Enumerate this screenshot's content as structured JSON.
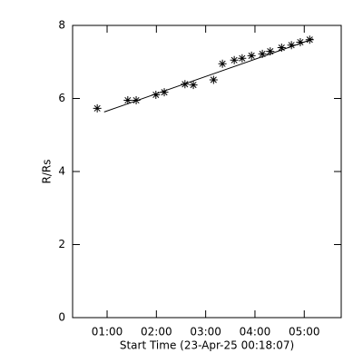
{
  "chart_data": {
    "type": "scatter",
    "x_label": "Start Time (23-Apr-25 00:18:07)",
    "y_label": "R/Rs",
    "x": [
      0.8,
      1.42,
      1.59,
      1.99,
      2.16,
      2.58,
      2.75,
      3.16,
      3.34,
      3.58,
      3.74,
      3.93,
      4.15,
      4.31,
      4.54,
      4.74,
      4.92,
      5.11
    ],
    "values": [
      5.73,
      5.95,
      5.95,
      6.1,
      6.17,
      6.39,
      6.37,
      6.51,
      6.95,
      7.05,
      7.1,
      7.17,
      7.22,
      7.29,
      7.39,
      7.46,
      7.54,
      7.61
    ],
    "marker": "asterisk",
    "color": "#000000",
    "fit": {
      "x": [
        0.94,
        5.18
      ],
      "values": [
        5.63,
        7.63
      ]
    },
    "xlim": [
      0.3,
      5.75
    ],
    "ylim": [
      0,
      8
    ],
    "xticks": [
      {
        "value": 1,
        "label": "01:00"
      },
      {
        "value": 2,
        "label": "02:00"
      },
      {
        "value": 3,
        "label": "03:00"
      },
      {
        "value": 4,
        "label": "04:00"
      },
      {
        "value": 5,
        "label": "05:00"
      }
    ],
    "yticks": [
      0,
      2,
      4,
      6,
      8
    ]
  }
}
